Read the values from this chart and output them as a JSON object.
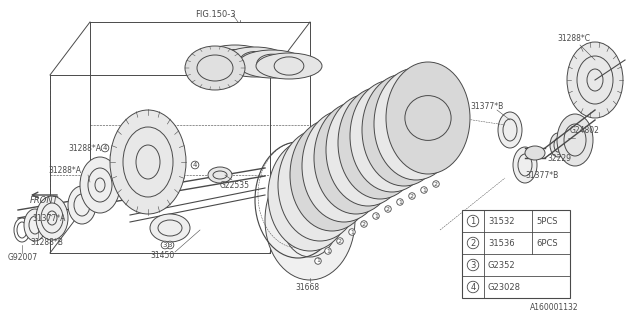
{
  "bg_color": "#ffffff",
  "line_color": "#4a4a4a",
  "text_color": "#4a4a4a",
  "legend_items": [
    {
      "num": "1",
      "part": "31532",
      "qty": "5PCS"
    },
    {
      "num": "2",
      "part": "31536",
      "qty": "6PCS"
    },
    {
      "num": "3",
      "part": "G2352",
      "qty": ""
    },
    {
      "num": "4",
      "part": "G23028",
      "qty": ""
    }
  ],
  "fig_size": [
    6.4,
    3.2
  ],
  "dpi": 100
}
